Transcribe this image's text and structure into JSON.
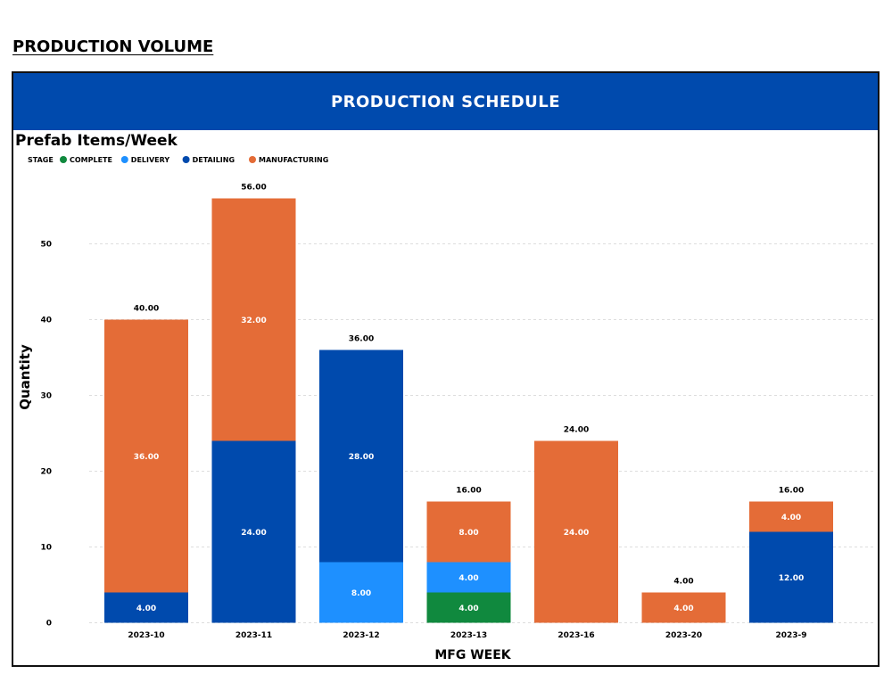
{
  "page": {
    "heading": "PRODUCTION VOLUME",
    "banner_title": "PRODUCTION SCHEDULE"
  },
  "colors": {
    "banner": "#004aad",
    "COMPLETE": "#10893e",
    "DELIVERY": "#1e90ff",
    "DETAILING": "#004aad",
    "MANUFACTURING": "#e46c37"
  },
  "chart_data": {
    "type": "bar",
    "stacked": true,
    "title": "Prefab Items/Week",
    "xlabel": "MFG  WEEK",
    "ylabel": "Quantity",
    "ylim": [
      0,
      56
    ],
    "yticks": [
      0,
      10,
      20,
      30,
      40,
      50
    ],
    "grid": true,
    "legend_title": "STAGE",
    "legend_position": "top-left",
    "categories": [
      "2023-10",
      "2023-11",
      "2023-12",
      "2023-13",
      "2023-16",
      "2023-20",
      "2023-9"
    ],
    "series": [
      {
        "name": "COMPLETE",
        "values": [
          0,
          0,
          0,
          4,
          0,
          0,
          0
        ]
      },
      {
        "name": "DELIVERY",
        "values": [
          0,
          0,
          8,
          4,
          0,
          0,
          0
        ]
      },
      {
        "name": "DETAILING",
        "values": [
          4,
          24,
          28,
          0,
          0,
          0,
          12
        ]
      },
      {
        "name": "MANUFACTURING",
        "values": [
          36,
          32,
          0,
          8,
          24,
          4,
          4
        ]
      }
    ],
    "totals": [
      40,
      56,
      36,
      16,
      24,
      4,
      16
    ]
  }
}
